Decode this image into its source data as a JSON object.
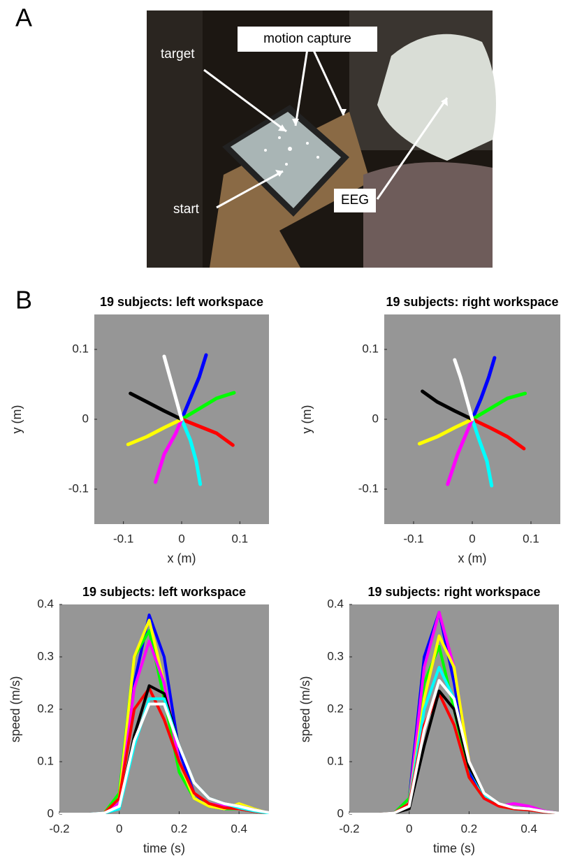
{
  "panel_labels": [
    "A",
    "B"
  ],
  "photo": {
    "annotations": [
      "target",
      "motion capture",
      "start",
      "EEG"
    ]
  },
  "chart_data": [
    {
      "type": "line",
      "title": "19 subjects: left workspace",
      "x_label": "x (m)",
      "y_label": "y (m)",
      "xlim": [
        -0.15,
        0.15
      ],
      "ylim": [
        -0.15,
        0.15
      ],
      "xticks": [
        -0.1,
        0,
        0.1
      ],
      "yticks": [
        -0.1,
        0,
        0.1
      ],
      "grid": false,
      "background": "#969696",
      "series": [
        {
          "color": "#0000ff",
          "x": [
            0,
            0.015,
            0.03,
            0.042
          ],
          "values": [
            0,
            0.03,
            0.06,
            0.092
          ]
        },
        {
          "color": "#00ff00",
          "x": [
            0,
            0.03,
            0.06,
            0.09
          ],
          "values": [
            0,
            0.015,
            0.03,
            0.038
          ]
        },
        {
          "color": "#ff0000",
          "x": [
            0,
            0.03,
            0.06,
            0.088
          ],
          "values": [
            0,
            -0.01,
            -0.02,
            -0.037
          ]
        },
        {
          "color": "#00ffff",
          "x": [
            0,
            0.015,
            0.025,
            0.032
          ],
          "values": [
            0,
            -0.03,
            -0.06,
            -0.093
          ]
        },
        {
          "color": "#ff00ff",
          "x": [
            0,
            -0.01,
            -0.03,
            -0.045
          ],
          "values": [
            0,
            -0.02,
            -0.05,
            -0.09
          ]
        },
        {
          "color": "#ffff00",
          "x": [
            0,
            -0.03,
            -0.06,
            -0.092
          ],
          "values": [
            0,
            -0.012,
            -0.025,
            -0.036
          ]
        },
        {
          "color": "#000000",
          "x": [
            0,
            -0.03,
            -0.06,
            -0.088
          ],
          "values": [
            0,
            0.012,
            0.025,
            0.037
          ]
        },
        {
          "color": "#ffffff",
          "x": [
            0,
            -0.01,
            -0.02,
            -0.03
          ],
          "values": [
            0,
            0.03,
            0.06,
            0.09
          ]
        }
      ]
    },
    {
      "type": "line",
      "title": "19 subjects: right workspace",
      "x_label": "x (m)",
      "y_label": "y (m)",
      "xlim": [
        -0.15,
        0.15
      ],
      "ylim": [
        -0.15,
        0.15
      ],
      "xticks": [
        -0.1,
        0,
        0.1
      ],
      "yticks": [
        -0.1,
        0,
        0.1
      ],
      "grid": false,
      "background": "#969696",
      "series": [
        {
          "color": "#0000ff",
          "x": [
            0,
            0.015,
            0.028,
            0.038
          ],
          "values": [
            0,
            0.03,
            0.06,
            0.088
          ]
        },
        {
          "color": "#00ff00",
          "x": [
            0,
            0.03,
            0.06,
            0.09
          ],
          "values": [
            0,
            0.015,
            0.03,
            0.037
          ]
        },
        {
          "color": "#ff0000",
          "x": [
            0,
            0.03,
            0.06,
            0.088
          ],
          "values": [
            0,
            -0.012,
            -0.025,
            -0.042
          ]
        },
        {
          "color": "#00ffff",
          "x": [
            0,
            0.012,
            0.025,
            0.033
          ],
          "values": [
            0,
            -0.03,
            -0.06,
            -0.095
          ]
        },
        {
          "color": "#ff00ff",
          "x": [
            0,
            -0.01,
            -0.025,
            -0.042
          ],
          "values": [
            0,
            -0.02,
            -0.05,
            -0.093
          ]
        },
        {
          "color": "#ffff00",
          "x": [
            0,
            -0.03,
            -0.06,
            -0.09
          ],
          "values": [
            0,
            -0.012,
            -0.025,
            -0.035
          ]
        },
        {
          "color": "#000000",
          "x": [
            0,
            -0.03,
            -0.06,
            -0.085
          ],
          "values": [
            0,
            0.012,
            0.025,
            0.04
          ]
        },
        {
          "color": "#ffffff",
          "x": [
            0,
            -0.01,
            -0.02,
            -0.03
          ],
          "values": [
            0,
            0.03,
            0.06,
            0.085
          ]
        }
      ]
    },
    {
      "type": "line",
      "title": "19 subjects: left workspace",
      "x_label": "time (s)",
      "y_label": "speed (m/s)",
      "xlim": [
        -0.2,
        0.5
      ],
      "ylim": [
        0,
        0.4
      ],
      "xticks": [
        -0.2,
        0,
        0.2,
        0.4
      ],
      "yticks": [
        0,
        0.1,
        0.2,
        0.3,
        0.4
      ],
      "grid": false,
      "background": "#969696",
      "x": [
        -0.2,
        -0.15,
        -0.1,
        -0.05,
        0,
        0.05,
        0.1,
        0.15,
        0.2,
        0.25,
        0.3,
        0.35,
        0.4,
        0.45,
        0.5
      ],
      "series": [
        {
          "color": "#0000ff",
          "values": [
            0,
            0,
            0,
            0.002,
            0.02,
            0.25,
            0.38,
            0.3,
            0.12,
            0.04,
            0.015,
            0.01,
            0.01,
            0.005,
            0.002
          ]
        },
        {
          "color": "#00ff00",
          "values": [
            0,
            0,
            0,
            0.002,
            0.04,
            0.3,
            0.35,
            0.22,
            0.08,
            0.03,
            0.015,
            0.01,
            0.01,
            0.005,
            0.002
          ]
        },
        {
          "color": "#ffff00",
          "values": [
            0,
            0,
            0,
            0.002,
            0.03,
            0.3,
            0.37,
            0.25,
            0.1,
            0.03,
            0.015,
            0.01,
            0.02,
            0.01,
            0.002
          ]
        },
        {
          "color": "#ff00ff",
          "values": [
            0,
            0,
            0,
            0.002,
            0.02,
            0.24,
            0.33,
            0.25,
            0.1,
            0.04,
            0.02,
            0.015,
            0.015,
            0.008,
            0.002
          ]
        },
        {
          "color": "#ff0000",
          "values": [
            0,
            0,
            0,
            0.002,
            0.03,
            0.2,
            0.24,
            0.18,
            0.1,
            0.04,
            0.02,
            0.012,
            0.01,
            0.005,
            0.002
          ]
        },
        {
          "color": "#000000",
          "values": [
            0,
            0,
            0,
            0.002,
            0.01,
            0.15,
            0.245,
            0.23,
            0.13,
            0.06,
            0.03,
            0.02,
            0.015,
            0.008,
            0.003
          ]
        },
        {
          "color": "#00ffff",
          "values": [
            0,
            0,
            0,
            0.002,
            0.01,
            0.13,
            0.22,
            0.22,
            0.13,
            0.06,
            0.03,
            0.02,
            0.012,
            0.006,
            0.002
          ]
        },
        {
          "color": "#ffffff",
          "values": [
            0,
            0,
            0,
            0.002,
            0.015,
            0.14,
            0.21,
            0.21,
            0.13,
            0.06,
            0.03,
            0.02,
            0.015,
            0.008,
            0.003
          ]
        }
      ]
    },
    {
      "type": "line",
      "title": "19 subjects: right workspace",
      "x_label": "time (s)",
      "y_label": "speed (m/s)",
      "xlim": [
        -0.2,
        0.5
      ],
      "ylim": [
        0,
        0.4
      ],
      "xticks": [
        -0.2,
        0,
        0.2,
        0.4
      ],
      "yticks": [
        0,
        0.1,
        0.2,
        0.3,
        0.4
      ],
      "grid": false,
      "background": "#969696",
      "x": [
        -0.2,
        -0.15,
        -0.1,
        -0.05,
        0,
        0.05,
        0.1,
        0.15,
        0.2,
        0.25,
        0.3,
        0.35,
        0.4,
        0.45,
        0.5
      ],
      "series": [
        {
          "color": "#0000ff",
          "values": [
            0,
            0,
            0,
            0.002,
            0.03,
            0.3,
            0.385,
            0.25,
            0.08,
            0.03,
            0.015,
            0.01,
            0.008,
            0.004,
            0.002
          ]
        },
        {
          "color": "#00ff00",
          "values": [
            0,
            0,
            0,
            0.002,
            0.03,
            0.25,
            0.32,
            0.2,
            0.07,
            0.03,
            0.015,
            0.01,
            0.008,
            0.004,
            0.002
          ]
        },
        {
          "color": "#ff00ff",
          "values": [
            0,
            0,
            0,
            0.002,
            0.02,
            0.28,
            0.385,
            0.28,
            0.1,
            0.03,
            0.015,
            0.02,
            0.015,
            0.006,
            0.002
          ]
        },
        {
          "color": "#ffff00",
          "values": [
            0,
            0,
            0,
            0.002,
            0.02,
            0.22,
            0.34,
            0.28,
            0.1,
            0.035,
            0.015,
            0.01,
            0.01,
            0.005,
            0.002
          ]
        },
        {
          "color": "#00ffff",
          "values": [
            0,
            0,
            0,
            0.002,
            0.02,
            0.2,
            0.28,
            0.22,
            0.09,
            0.035,
            0.015,
            0.01,
            0.01,
            0.005,
            0.002
          ]
        },
        {
          "color": "#ff0000",
          "values": [
            0,
            0,
            0,
            0.002,
            0.02,
            0.17,
            0.23,
            0.17,
            0.07,
            0.03,
            0.015,
            0.01,
            0.008,
            0.004,
            0.002
          ]
        },
        {
          "color": "#000000",
          "values": [
            0,
            0,
            0,
            0.002,
            0.01,
            0.13,
            0.235,
            0.2,
            0.09,
            0.04,
            0.02,
            0.012,
            0.01,
            0.005,
            0.002
          ]
        },
        {
          "color": "#ffffff",
          "values": [
            0,
            0,
            0,
            0.002,
            0.015,
            0.16,
            0.255,
            0.22,
            0.1,
            0.04,
            0.02,
            0.012,
            0.01,
            0.005,
            0.002
          ]
        }
      ]
    }
  ]
}
